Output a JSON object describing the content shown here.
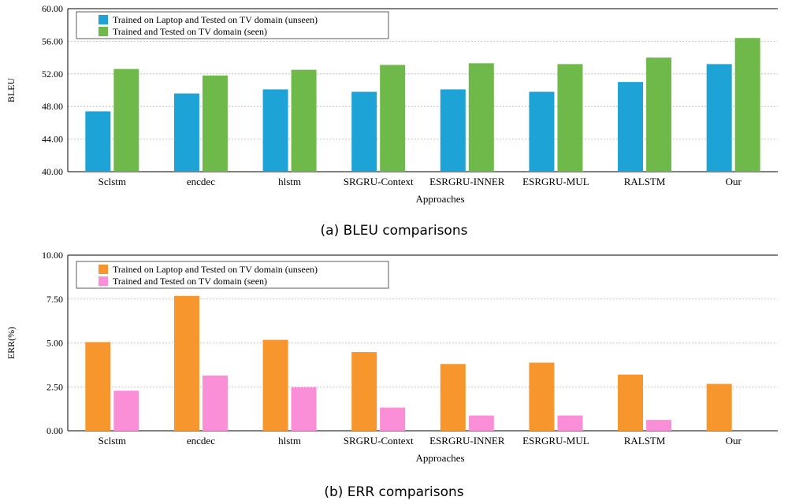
{
  "colors": {
    "bleu_unseen": "#1ea3d6",
    "bleu_seen": "#6fb94a",
    "err_unseen": "#f7962c",
    "err_seen": "#fa8fd8",
    "grid": "#b8b8b8",
    "axis": "#000000"
  },
  "chart_data": [
    {
      "type": "bar",
      "caption": "(a) BLEU comparisons",
      "xlabel": "Approaches",
      "ylabel": "BLEU",
      "ylim": [
        40,
        60
      ],
      "yticks": [
        "40.00",
        "44.00",
        "48.00",
        "52.00",
        "56.00",
        "60.00"
      ],
      "ytick_values": [
        40,
        44,
        48,
        52,
        56,
        60
      ],
      "grid": true,
      "legend_position": "top-left",
      "categories": [
        "Sclstm",
        "encdec",
        "hlstm",
        "SRGRU-Context",
        "ESRGRU-INNER",
        "ESRGRU-MUL",
        "RALSTM",
        "Our"
      ],
      "series": [
        {
          "name": "Trained on Laptop and Tested on TV domain (unseen)",
          "values": [
            47.4,
            49.6,
            50.1,
            49.8,
            50.1,
            49.8,
            51.0,
            53.2
          ]
        },
        {
          "name": "Trained and Tested on TV domain (seen)",
          "values": [
            52.6,
            51.8,
            52.5,
            53.1,
            53.3,
            53.2,
            54.0,
            56.4
          ]
        }
      ]
    },
    {
      "type": "bar",
      "caption": "(b) ERR comparisons",
      "xlabel": "Approaches",
      "ylabel": "ERR(%)",
      "ylim": [
        0,
        10
      ],
      "yticks": [
        "0.00",
        "2.50",
        "5.00",
        "7.50",
        "10.00"
      ],
      "ytick_values": [
        0,
        2.5,
        5,
        7.5,
        10
      ],
      "grid": true,
      "legend_position": "top-left",
      "categories": [
        "Sclstm",
        "encdec",
        "hlstm",
        "SRGRU-Context",
        "ESRGRU-INNER",
        "ESRGRU-MUL",
        "RALSTM",
        "Our"
      ],
      "series": [
        {
          "name": "Trained on Laptop and Tested on TV domain (unseen)",
          "values": [
            5.05,
            7.68,
            5.18,
            4.48,
            3.8,
            3.88,
            3.2,
            2.67
          ]
        },
        {
          "name": "Trained and Tested on TV domain (seen)",
          "values": [
            2.28,
            3.15,
            2.48,
            1.32,
            0.87,
            0.87,
            0.62,
            0.0
          ]
        }
      ]
    }
  ]
}
